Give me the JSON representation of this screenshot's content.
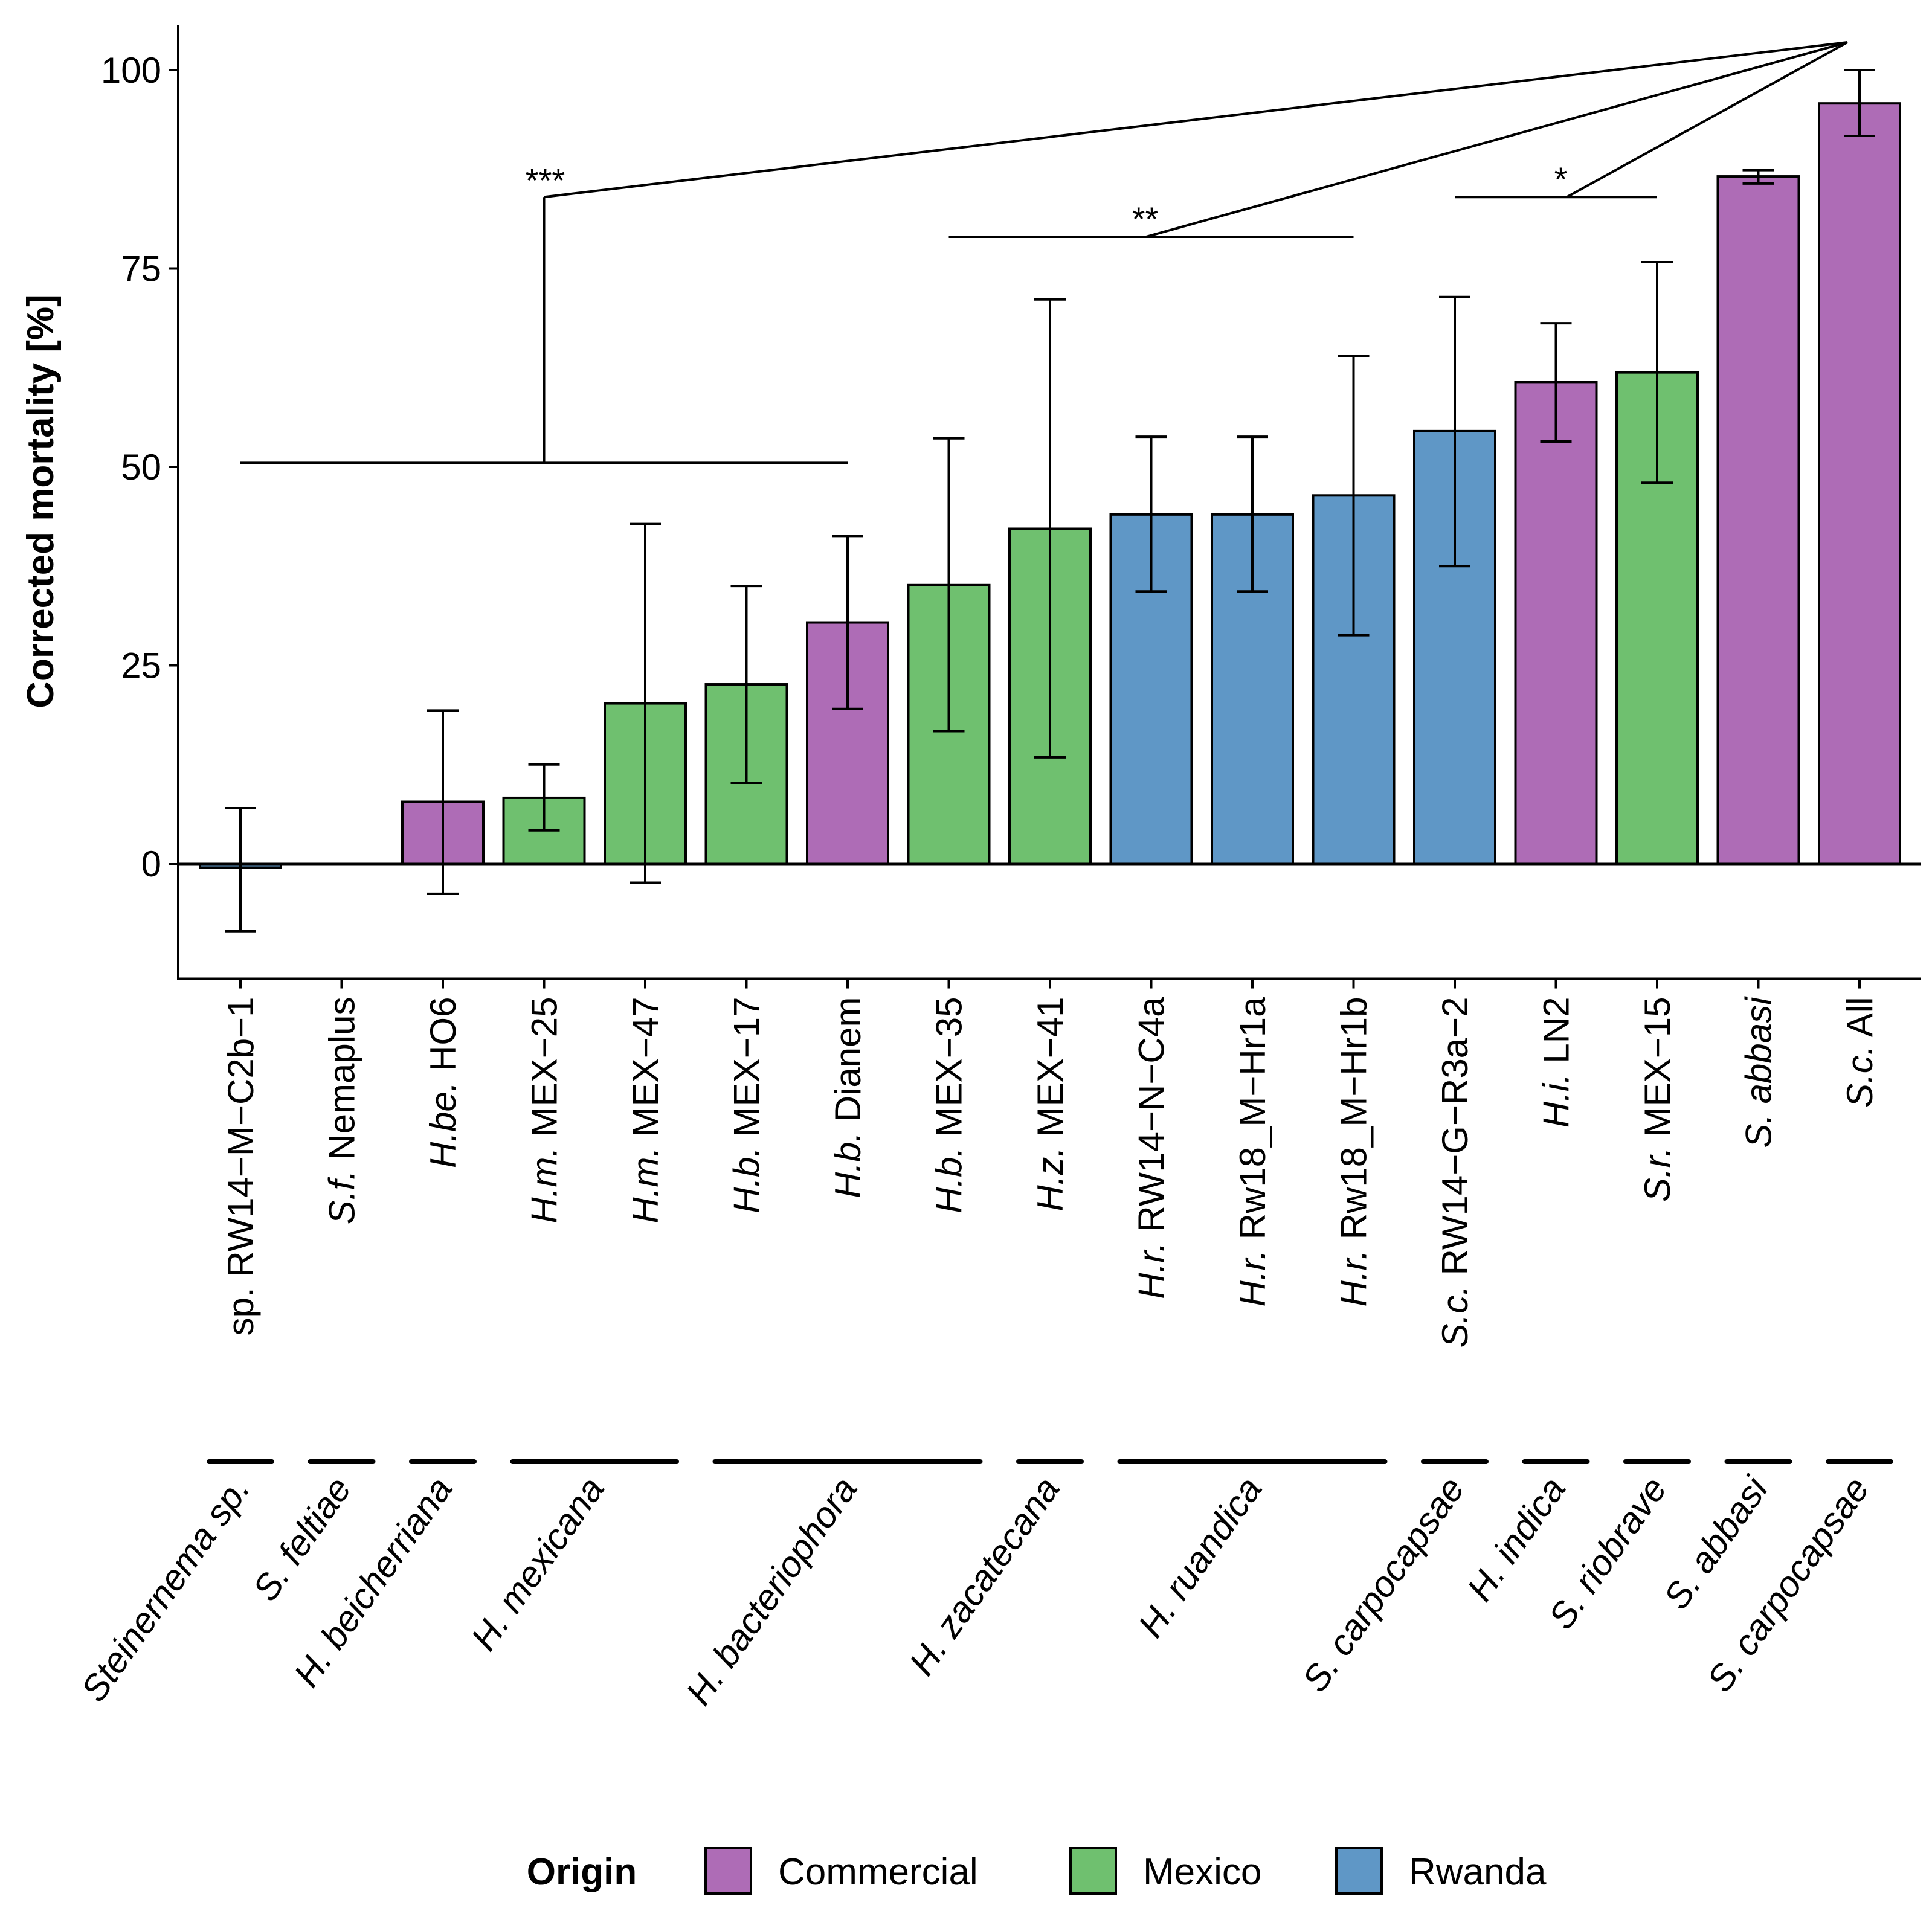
{
  "chart_data": {
    "type": "bar",
    "ylabel": "Corrected mortality [%]",
    "ylim": [
      -14.5,
      106
    ],
    "yticks": [
      0,
      25,
      50,
      75,
      100
    ],
    "bars": [
      {
        "label": [
          [
            "sp. RW14−M−C2b−1",
            false
          ]
        ],
        "value": -0.5,
        "lower": -8.5,
        "upper": 7,
        "origin": "Rwanda"
      },
      {
        "label": [
          [
            "S.f.",
            true
          ],
          [
            " Nemaplus",
            false
          ]
        ],
        "value": 0,
        "lower": null,
        "upper": null,
        "origin": "Commercial"
      },
      {
        "label": [
          [
            "H.be.",
            true
          ],
          [
            " HO6",
            false
          ]
        ],
        "value": 7.8,
        "lower": -3.8,
        "upper": 19.3,
        "origin": "Commercial"
      },
      {
        "label": [
          [
            "H.m.",
            true
          ],
          [
            " MEX−25",
            false
          ]
        ],
        "value": 8.3,
        "lower": 4.2,
        "upper": 12.5,
        "origin": "Mexico"
      },
      {
        "label": [
          [
            "H.m.",
            true
          ],
          [
            " MEX−47",
            false
          ]
        ],
        "value": 20.2,
        "lower": -2.4,
        "upper": 42.8,
        "origin": "Mexico"
      },
      {
        "label": [
          [
            "H.b.",
            true
          ],
          [
            " MEX−17",
            false
          ]
        ],
        "value": 22.6,
        "lower": 10.2,
        "upper": 35.0,
        "origin": "Mexico"
      },
      {
        "label": [
          [
            "H.b.",
            true
          ],
          [
            " Dianem",
            false
          ]
        ],
        "value": 30.4,
        "lower": 19.5,
        "upper": 41.3,
        "origin": "Commercial"
      },
      {
        "label": [
          [
            "H.b.",
            true
          ],
          [
            " MEX−35",
            false
          ]
        ],
        "value": 35.1,
        "lower": 16.7,
        "upper": 53.6,
        "origin": "Mexico"
      },
      {
        "label": [
          [
            "H.z.",
            true
          ],
          [
            " MEX−41",
            false
          ]
        ],
        "value": 42.2,
        "lower": 13.4,
        "upper": 71.1,
        "origin": "Mexico"
      },
      {
        "label": [
          [
            "H.r.",
            true
          ],
          [
            " RW14−N−C4a",
            false
          ]
        ],
        "value": 44.0,
        "lower": 34.3,
        "upper": 53.8,
        "origin": "Rwanda"
      },
      {
        "label": [
          [
            "H.r.",
            true
          ],
          [
            " Rw18_M−Hr1a",
            false
          ]
        ],
        "value": 44.0,
        "lower": 34.3,
        "upper": 53.8,
        "origin": "Rwanda"
      },
      {
        "label": [
          [
            "H.r.",
            true
          ],
          [
            " Rw18_M−Hr1b",
            false
          ]
        ],
        "value": 46.4,
        "lower": 28.8,
        "upper": 64.0,
        "origin": "Rwanda"
      },
      {
        "label": [
          [
            "S.c.",
            true
          ],
          [
            " RW14−G−R3a−2",
            false
          ]
        ],
        "value": 54.5,
        "lower": 37.5,
        "upper": 71.4,
        "origin": "Rwanda"
      },
      {
        "label": [
          [
            "H.i.",
            true
          ],
          [
            " LN2",
            false
          ]
        ],
        "value": 60.7,
        "lower": 53.2,
        "upper": 68.1,
        "origin": "Commercial"
      },
      {
        "label": [
          [
            "S.r.",
            true
          ],
          [
            " MEX−15",
            false
          ]
        ],
        "value": 61.9,
        "lower": 48.0,
        "upper": 75.8,
        "origin": "Mexico"
      },
      {
        "label": [
          [
            "S. abbasi",
            true
          ]
        ],
        "value": 86.6,
        "lower": 85.7,
        "upper": 87.4,
        "origin": "Commercial"
      },
      {
        "label": [
          [
            "S.c.",
            true
          ],
          [
            " All",
            false
          ]
        ],
        "value": 95.8,
        "lower": 91.7,
        "upper": 100.0,
        "origin": "Commercial"
      }
    ],
    "species_groups": [
      {
        "name": "Steinernema sp.",
        "from": 0,
        "to": 0
      },
      {
        "name": "S. feltiae",
        "from": 1,
        "to": 1
      },
      {
        "name": "H. beicherriana",
        "from": 2,
        "to": 2
      },
      {
        "name": "H. mexicana",
        "from": 3,
        "to": 4
      },
      {
        "name": "H. bacteriophora",
        "from": 5,
        "to": 7
      },
      {
        "name": "H. zacatecana",
        "from": 8,
        "to": 8
      },
      {
        "name": "H. ruandica",
        "from": 9,
        "to": 11
      },
      {
        "name": "S. carpocapsae",
        "from": 12,
        "to": 12
      },
      {
        "name": "H. indica",
        "from": 13,
        "to": 13
      },
      {
        "name": "S. riobrave",
        "from": 14,
        "to": 14
      },
      {
        "name": "S. abbasi",
        "from": 15,
        "to": 15
      },
      {
        "name": "S. carpocapsae",
        "from": 16,
        "to": 16
      }
    ],
    "significance": [
      {
        "label": "***",
        "from": 0,
        "to": 6,
        "bracket_y": 50.5,
        "stem_top_y": 84
      },
      {
        "label": "**",
        "from": 7,
        "to": 11,
        "bracket_y": 79
      },
      {
        "label": "*",
        "from": 12,
        "to": 14,
        "bracket_y": 84
      }
    ],
    "apex_y": 103.5,
    "legend": {
      "title": "Origin",
      "items": [
        {
          "name": "Commercial",
          "color": "#ae6cb6"
        },
        {
          "name": "Mexico",
          "color": "#6fc06f"
        },
        {
          "name": "Rwanda",
          "color": "#5f97c6"
        }
      ]
    }
  }
}
